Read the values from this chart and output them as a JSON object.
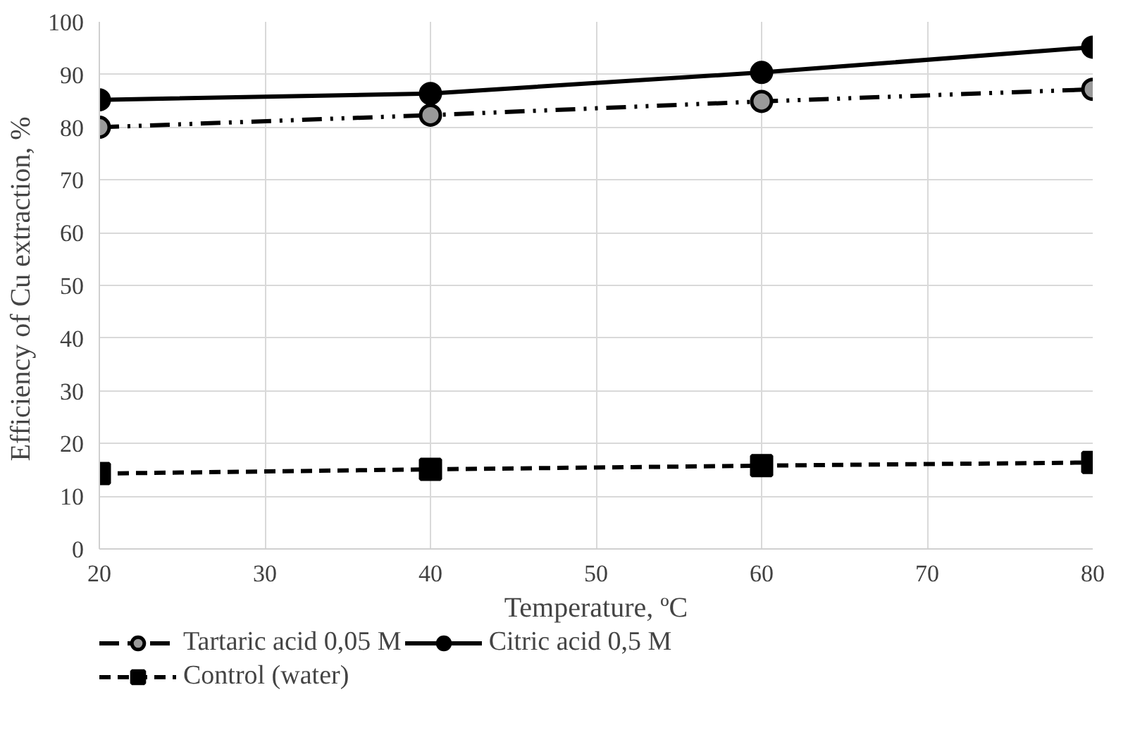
{
  "chart_data": {
    "type": "line",
    "xlabel": "Temperature, ºC",
    "ylabel": "Efficiency of  Cu extraction, %",
    "x": [
      20,
      40,
      60,
      80
    ],
    "series": [
      {
        "name": "Tartaric acid 0,05 M",
        "color": "#000000",
        "values": [
          80.0,
          82.3,
          84.9,
          87.2
        ],
        "marker": "circle",
        "line_style": "dashdot"
      },
      {
        "name": "Citric acid 0,5 M",
        "color": "#000000",
        "values": [
          85.2,
          86.4,
          90.4,
          95.2
        ],
        "marker": "circle",
        "line_style": "solid"
      },
      {
        "name": "Control (water)",
        "color": "#000000",
        "values": [
          14.3,
          15.1,
          15.8,
          16.4
        ],
        "marker": "square",
        "line_style": "dashed"
      }
    ],
    "xlim": [
      20,
      80
    ],
    "xticks": [
      20,
      30,
      40,
      50,
      60,
      70,
      80
    ],
    "ylim": [
      0,
      100
    ],
    "yticks": [
      0,
      10,
      20,
      30,
      40,
      50,
      60,
      70,
      80,
      90,
      100
    ],
    "grid": true,
    "legend": "bottom"
  }
}
